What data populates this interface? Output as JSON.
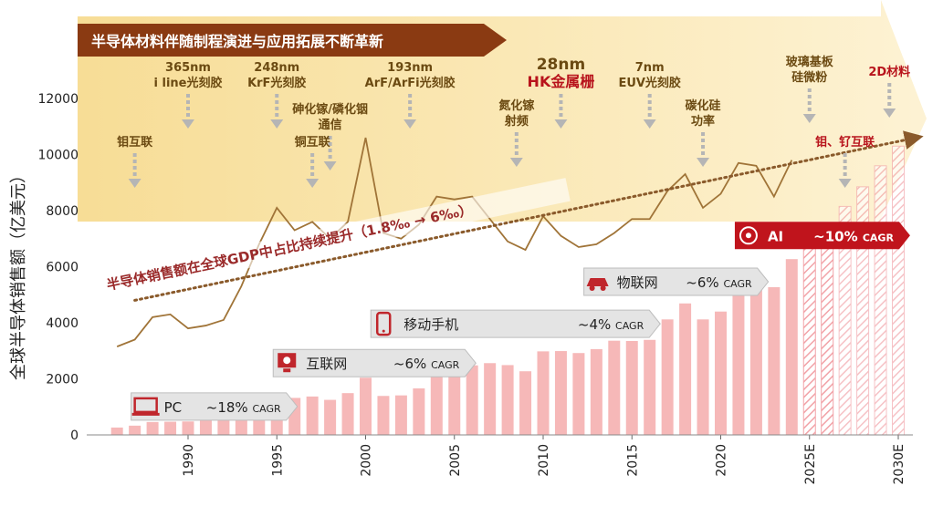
{
  "chart_data": {
    "type": "bar",
    "title": "半导体材料伴随制程演进与应用拓展不断革新",
    "ylabel": "全球半导体销售额（亿美元）",
    "xlabel": "",
    "ylim": [
      0,
      12000
    ],
    "yticks": [
      0,
      2000,
      4000,
      6000,
      8000,
      10000,
      12000
    ],
    "xtick_labels": [
      "1990",
      "1995",
      "2000",
      "2005",
      "2010",
      "2015",
      "2020",
      "2025E",
      "2030E"
    ],
    "xtick_years": [
      1990,
      1995,
      2000,
      2005,
      2010,
      2015,
      2020,
      2025,
      2030
    ],
    "bar_color": "#f6b8b8",
    "line_color": "#a07438",
    "accent_color": "#b8141c",
    "series": [
      {
        "kind": "bar",
        "x": [
          1986,
          1987,
          1988,
          1989,
          1990,
          1991,
          1992,
          1993,
          1994,
          1995,
          1996,
          1997,
          1998,
          1999,
          2000,
          2001,
          2002,
          2003,
          2004,
          2005,
          2006,
          2007,
          2008,
          2009,
          2010,
          2011,
          2012,
          2013,
          2014,
          2015,
          2016,
          2017,
          2018,
          2019,
          2020,
          2021,
          2022,
          2023,
          2024
        ],
        "values": [
          263,
          330,
          460,
          470,
          480,
          550,
          600,
          770,
          1020,
          1440,
          1320,
          1370,
          1250,
          1490,
          2040,
          1390,
          1410,
          1660,
          2130,
          2280,
          2480,
          2560,
          2490,
          2270,
          2980,
          2990,
          2920,
          3060,
          3360,
          3350,
          3390,
          4120,
          4690,
          4120,
          4400,
          5560,
          5740,
          5270,
          6270
        ]
      },
      {
        "kind": "bar-forecast",
        "x": [
          2025,
          2026,
          2027,
          2028,
          2029,
          2030
        ],
        "values": [
          6900,
          7500,
          8150,
          8850,
          9600,
          10300
        ]
      },
      {
        "kind": "line",
        "x": [
          1986,
          1987,
          1988,
          1989,
          1990,
          1991,
          1992,
          1993,
          1994,
          1995,
          1996,
          1997,
          1998,
          1999,
          2000,
          2001,
          2002,
          2003,
          2004,
          2005,
          2006,
          2007,
          2008,
          2009,
          2010,
          2011,
          2012,
          2013,
          2014,
          2015,
          2016,
          2017,
          2018,
          2019,
          2020,
          2021,
          2022,
          2023,
          2024
        ],
        "values": [
          3150,
          3400,
          4200,
          4300,
          3800,
          3900,
          4100,
          5300,
          6800,
          8100,
          7300,
          7600,
          7000,
          7600,
          10600,
          7200,
          7000,
          7500,
          8500,
          8400,
          8500,
          7700,
          6900,
          6600,
          7800,
          7100,
          6700,
          6800,
          7200,
          7700,
          7700,
          8700,
          9300,
          8100,
          8600,
          9700,
          9600,
          8500,
          9800
        ]
      }
    ],
    "trend_label": "半导体销售额在全球GDP中占比持续提升（1.8‰ → 6‰）",
    "trend_x": [
      1987,
      2031
    ],
    "trend_y": [
      4800,
      10600
    ],
    "eras": [
      {
        "label": "PC",
        "cagr": "~18%",
        "unit": "CAGR",
        "year": 1987,
        "y": 1500,
        "w": 170,
        "color": "#c0262c"
      },
      {
        "label": "互联网",
        "cagr": "~6%",
        "unit": "CAGR",
        "year": 1995,
        "y": 3050,
        "w": 210,
        "color": "#c0262c"
      },
      {
        "label": "移动手机",
        "cagr": "~4%",
        "unit": "CAGR",
        "year": 2000.5,
        "y": 4450,
        "w": 305,
        "color": "#c0262c"
      },
      {
        "label": "物联网",
        "cagr": "~6%",
        "unit": "CAGR",
        "year": 2012.5,
        "y": 5950,
        "w": 190,
        "color": "#c0262c"
      },
      {
        "label": "AI",
        "cagr": "~10%",
        "unit": "CAGR",
        "year": 2021,
        "y": 7600,
        "w": 180,
        "color": "#c0141c",
        "highlight": true
      }
    ],
    "materials": [
      {
        "lines": [
          "钼互联"
        ],
        "year": 1987,
        "top": 160,
        "red": false
      },
      {
        "lines": [
          "365nm",
          "i line光刻胶"
        ],
        "year": 1990,
        "top": 78,
        "red": false
      },
      {
        "lines": [
          "248nm",
          "KrF光刻胶"
        ],
        "year": 1995,
        "top": 78,
        "red": false
      },
      {
        "lines": [
          "砷化镓/磷化铟",
          "通信"
        ],
        "year": 1998,
        "top": 124,
        "red": false
      },
      {
        "lines": [
          "铜互联"
        ],
        "year": 1997,
        "top": 160,
        "red": false
      },
      {
        "lines": [
          "193nm",
          "ArF/ArFi光刻胶"
        ],
        "year": 2002.5,
        "top": 78,
        "red": false
      },
      {
        "lines": [
          "氮化镓",
          "射频"
        ],
        "year": 2008.5,
        "top": 120,
        "red": false
      },
      {
        "lines": [
          "28nm",
          "HK金属栅"
        ],
        "year": 2011,
        "top": 76,
        "red": false,
        "emph": true
      },
      {
        "lines": [
          "7nm",
          "EUV光刻胶"
        ],
        "year": 2016,
        "top": 78,
        "red": false
      },
      {
        "lines": [
          "碳化硅",
          "功率"
        ],
        "year": 2019,
        "top": 120,
        "red": false
      },
      {
        "lines": [
          "玻璃基板",
          "硅微粉"
        ],
        "year": 2025,
        "top": 72,
        "red": false
      },
      {
        "lines": [
          "2D材料"
        ],
        "year": 2029.5,
        "top": 83,
        "red": true
      },
      {
        "lines": [
          "钼、钌互联"
        ],
        "year": 2027,
        "top": 160,
        "red": true
      }
    ]
  }
}
